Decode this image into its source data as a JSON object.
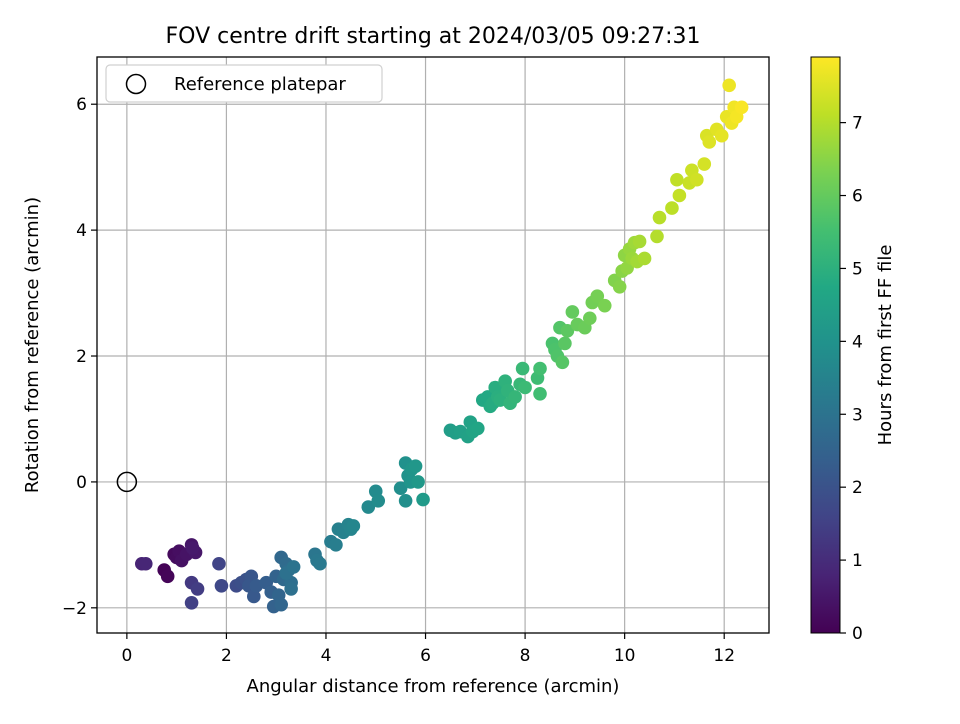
{
  "chart_data": {
    "type": "scatter",
    "title": "FOV centre drift starting at 2024/03/05 09:27:31",
    "xlabel": "Angular distance from reference (arcmin)",
    "ylabel": "Rotation from reference (arcmin)",
    "xlim": [
      -0.6,
      12.9
    ],
    "ylim": [
      -2.4,
      6.75
    ],
    "x_ticks": [
      0,
      2,
      4,
      6,
      8,
      10,
      12
    ],
    "x_tick_labels": [
      "0",
      "2",
      "4",
      "6",
      "8",
      "10",
      "12"
    ],
    "y_ticks": [
      -2,
      0,
      2,
      4,
      6
    ],
    "y_tick_labels": [
      "−2",
      "0",
      "2",
      "4",
      "6"
    ],
    "grid": true,
    "legend": {
      "position": "top-left",
      "entries": [
        {
          "label": "Reference platepar",
          "marker": "open-circle"
        }
      ]
    },
    "reference_point": {
      "x": 0,
      "y": 0
    },
    "colorbar": {
      "label": "Hours from first FF file",
      "colormap": "viridis",
      "range": [
        0,
        7.9
      ],
      "ticks": [
        0,
        1,
        2,
        3,
        4,
        5,
        6,
        7
      ],
      "tick_labels": [
        "0",
        "1",
        "2",
        "3",
        "4",
        "5",
        "6",
        "7"
      ]
    },
    "series": [
      {
        "points": [
          [
            0.75,
            -1.4,
            0.05
          ],
          [
            0.82,
            -1.5,
            0.1
          ],
          [
            0.95,
            -1.15,
            0.2
          ],
          [
            1.0,
            -1.2,
            0.25
          ],
          [
            1.05,
            -1.1,
            0.3
          ],
          [
            1.1,
            -1.25,
            0.35
          ],
          [
            1.2,
            -1.15,
            0.4
          ],
          [
            1.3,
            -1.0,
            0.45
          ],
          [
            1.38,
            -1.12,
            0.5
          ],
          [
            1.32,
            -1.05,
            0.55
          ],
          [
            0.3,
            -1.3,
            0.8
          ],
          [
            0.38,
            -1.3,
            0.85
          ],
          [
            1.3,
            -1.6,
            1.3
          ],
          [
            1.42,
            -1.7,
            1.4
          ],
          [
            1.3,
            -1.92,
            1.5
          ],
          [
            1.85,
            -1.3,
            1.6
          ],
          [
            1.9,
            -1.65,
            1.7
          ],
          [
            2.2,
            -1.65,
            1.8
          ],
          [
            2.3,
            -1.6,
            1.9
          ],
          [
            2.4,
            -1.55,
            2.0
          ],
          [
            2.5,
            -1.5,
            2.1
          ],
          [
            2.45,
            -1.65,
            2.15
          ],
          [
            2.55,
            -1.82,
            2.2
          ],
          [
            2.6,
            -1.65,
            2.25
          ],
          [
            2.8,
            -1.6,
            2.35
          ],
          [
            2.9,
            -1.75,
            2.4
          ],
          [
            2.95,
            -1.98,
            2.45
          ],
          [
            3.0,
            -1.5,
            2.5
          ],
          [
            3.05,
            -1.8,
            2.55
          ],
          [
            3.1,
            -1.95,
            2.6
          ],
          [
            3.1,
            -1.2,
            2.65
          ],
          [
            3.15,
            -1.55,
            2.7
          ],
          [
            3.2,
            -1.3,
            2.75
          ],
          [
            3.25,
            -1.4,
            2.8
          ],
          [
            3.3,
            -1.6,
            2.85
          ],
          [
            3.3,
            -1.7,
            2.9
          ],
          [
            3.2,
            -1.45,
            2.95
          ],
          [
            3.35,
            -1.35,
            3.0
          ],
          [
            3.78,
            -1.15,
            3.1
          ],
          [
            3.82,
            -1.25,
            3.15
          ],
          [
            3.88,
            -1.3,
            3.2
          ],
          [
            4.1,
            -0.95,
            3.3
          ],
          [
            4.2,
            -1.0,
            3.35
          ],
          [
            4.25,
            -0.75,
            3.4
          ],
          [
            4.35,
            -0.8,
            3.45
          ],
          [
            4.45,
            -0.68,
            3.5
          ],
          [
            4.5,
            -0.75,
            3.55
          ],
          [
            4.55,
            -0.7,
            3.6
          ],
          [
            4.85,
            -0.4,
            3.7
          ],
          [
            5.0,
            -0.15,
            3.75
          ],
          [
            5.05,
            -0.3,
            3.8
          ],
          [
            5.5,
            -0.1,
            3.85
          ],
          [
            5.6,
            -0.3,
            3.9
          ],
          [
            5.6,
            0.3,
            3.95
          ],
          [
            5.65,
            0.1,
            4.0
          ],
          [
            5.7,
            0.0,
            4.05
          ],
          [
            5.72,
            0.2,
            4.1
          ],
          [
            5.8,
            0.25,
            4.15
          ],
          [
            5.85,
            0.0,
            4.2
          ],
          [
            5.95,
            -0.28,
            4.25
          ],
          [
            6.5,
            0.82,
            4.35
          ],
          [
            6.6,
            0.78,
            4.4
          ],
          [
            6.7,
            0.8,
            4.45
          ],
          [
            6.85,
            0.72,
            4.5
          ],
          [
            6.9,
            0.95,
            4.55
          ],
          [
            6.95,
            0.8,
            4.6
          ],
          [
            7.05,
            0.85,
            4.65
          ],
          [
            7.15,
            1.3,
            4.7
          ],
          [
            7.25,
            1.35,
            4.75
          ],
          [
            7.3,
            1.2,
            4.8
          ],
          [
            7.35,
            1.25,
            4.85
          ],
          [
            7.4,
            1.5,
            4.9
          ],
          [
            7.45,
            1.35,
            4.95
          ],
          [
            7.5,
            1.3,
            5.0
          ],
          [
            7.6,
            1.6,
            5.05
          ],
          [
            7.65,
            1.45,
            5.1
          ],
          [
            7.7,
            1.25,
            5.15
          ],
          [
            7.8,
            1.35,
            5.2
          ],
          [
            7.9,
            1.55,
            5.25
          ],
          [
            7.95,
            1.8,
            5.3
          ],
          [
            8.0,
            1.5,
            5.35
          ],
          [
            8.25,
            1.65,
            5.4
          ],
          [
            8.3,
            1.4,
            5.45
          ],
          [
            8.3,
            1.8,
            5.5
          ],
          [
            8.55,
            2.2,
            5.6
          ],
          [
            8.6,
            2.1,
            5.65
          ],
          [
            8.65,
            2.0,
            5.7
          ],
          [
            8.7,
            2.45,
            5.75
          ],
          [
            8.75,
            1.9,
            5.8
          ],
          [
            8.8,
            2.2,
            5.85
          ],
          [
            8.85,
            2.4,
            5.9
          ],
          [
            8.95,
            2.7,
            6.0
          ],
          [
            9.05,
            2.5,
            6.05
          ],
          [
            9.2,
            2.45,
            6.1
          ],
          [
            9.3,
            2.6,
            6.15
          ],
          [
            9.35,
            2.85,
            6.2
          ],
          [
            9.45,
            2.95,
            6.25
          ],
          [
            9.6,
            2.8,
            6.3
          ],
          [
            9.8,
            3.2,
            6.4
          ],
          [
            9.9,
            3.1,
            6.45
          ],
          [
            9.95,
            3.35,
            6.5
          ],
          [
            10.0,
            3.6,
            6.55
          ],
          [
            10.05,
            3.4,
            6.6
          ],
          [
            10.1,
            3.7,
            6.65
          ],
          [
            10.15,
            3.55,
            6.7
          ],
          [
            10.2,
            3.8,
            6.75
          ],
          [
            10.25,
            3.5,
            6.8
          ],
          [
            10.3,
            3.82,
            6.85
          ],
          [
            10.4,
            3.55,
            6.9
          ],
          [
            10.65,
            3.9,
            7.0
          ],
          [
            10.7,
            4.2,
            7.05
          ],
          [
            10.95,
            4.35,
            7.1
          ],
          [
            11.05,
            4.8,
            7.15
          ],
          [
            11.1,
            4.55,
            7.2
          ],
          [
            11.3,
            4.75,
            7.25
          ],
          [
            11.35,
            4.95,
            7.3
          ],
          [
            11.45,
            4.8,
            7.35
          ],
          [
            11.6,
            5.05,
            7.4
          ],
          [
            11.65,
            5.5,
            7.45
          ],
          [
            11.7,
            5.4,
            7.5
          ],
          [
            11.85,
            5.6,
            7.55
          ],
          [
            11.95,
            5.5,
            7.6
          ],
          [
            12.05,
            5.8,
            7.65
          ],
          [
            12.1,
            6.3,
            7.7
          ],
          [
            12.15,
            5.7,
            7.72
          ],
          [
            12.2,
            5.95,
            7.75
          ],
          [
            12.25,
            5.8,
            7.8
          ],
          [
            12.35,
            5.95,
            7.85
          ]
        ]
      }
    ]
  }
}
